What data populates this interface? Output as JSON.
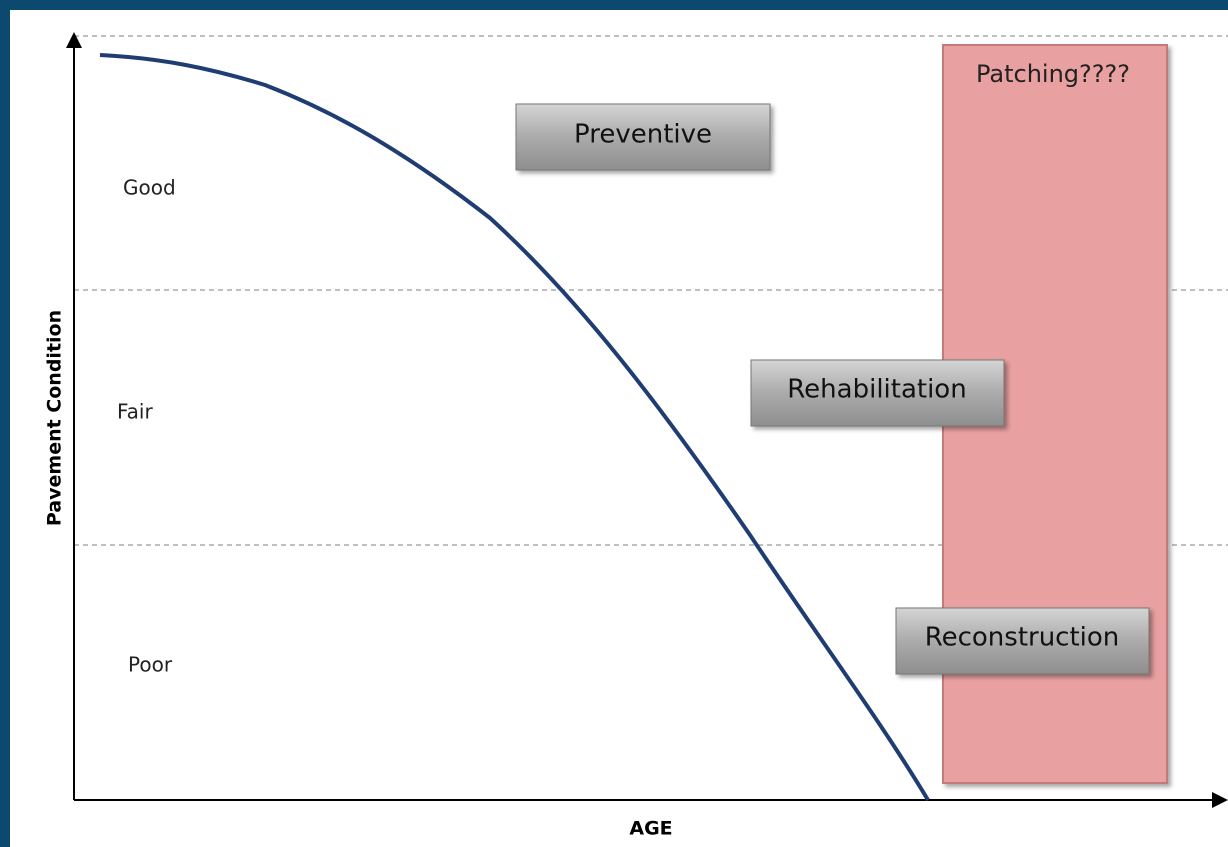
{
  "y_axis_label": "Pavement Condition",
  "x_axis_label": "AGE",
  "zones": [
    "Good",
    "Fair",
    "Poor"
  ],
  "treatments": [
    "Preventive",
    "Rehabilitation",
    "Reconstruction"
  ],
  "highlight": "Patching????"
}
